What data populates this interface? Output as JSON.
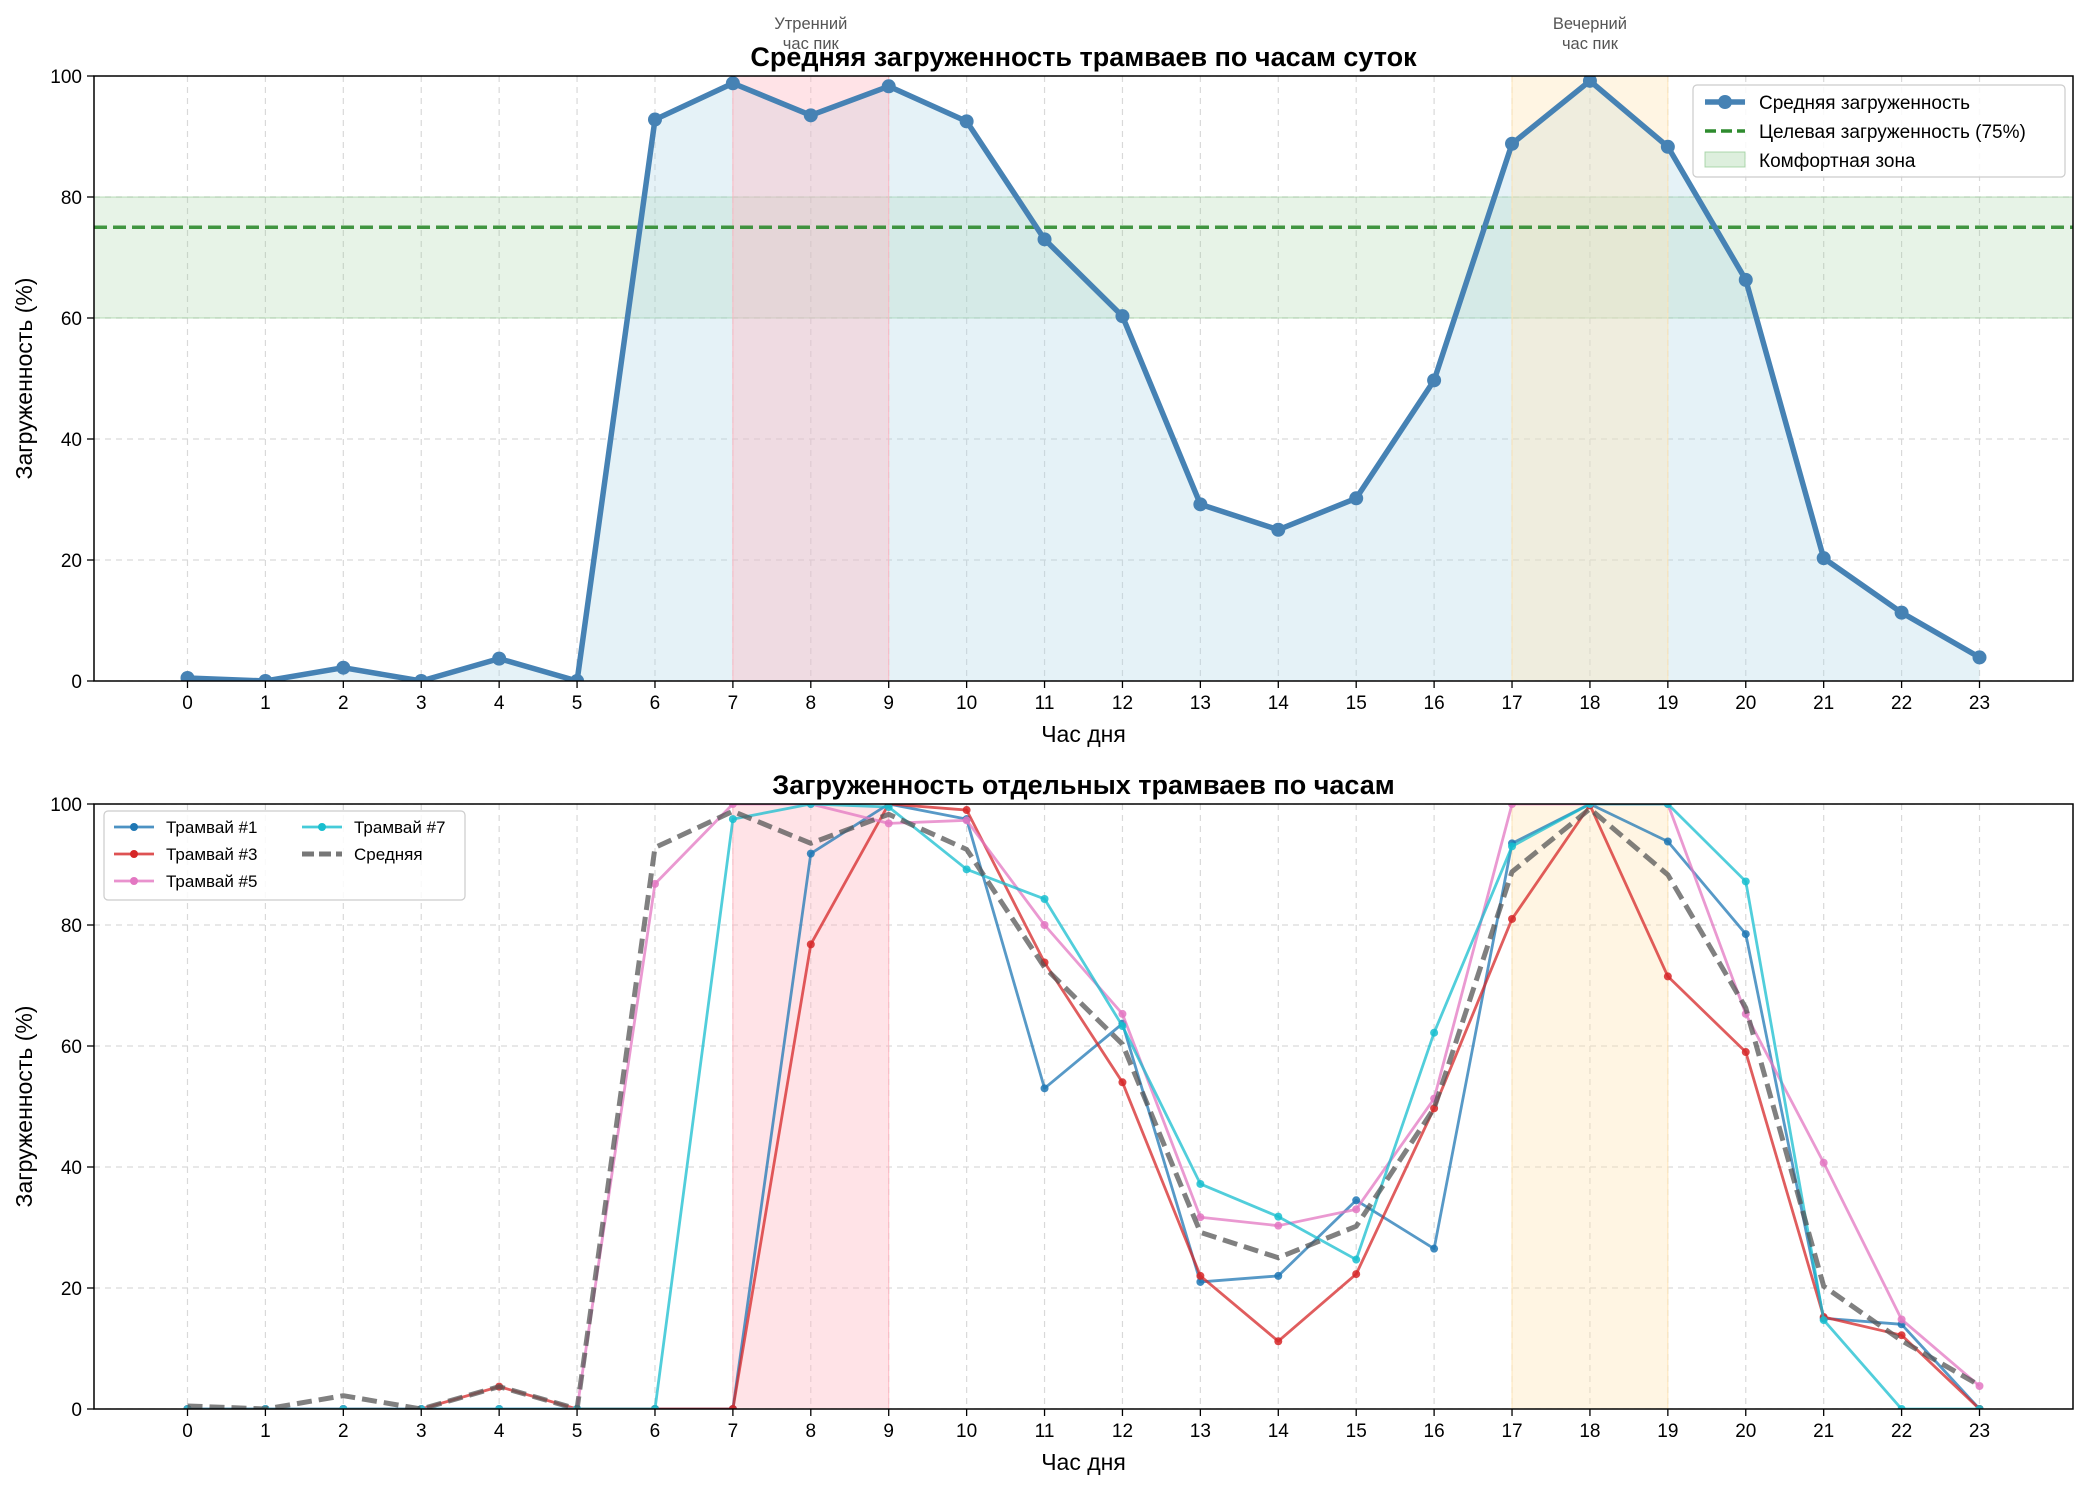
{
  "chart_data": [
    {
      "type": "line",
      "title": "Средняя загруженность трамваев по часам суток",
      "xlabel": "Час дня",
      "ylabel": "Загруженность (%)",
      "x": [
        0,
        1,
        2,
        3,
        4,
        5,
        6,
        7,
        8,
        9,
        10,
        11,
        12,
        13,
        14,
        15,
        16,
        17,
        18,
        19,
        20,
        21,
        22,
        23
      ],
      "xlim": [
        -1.2,
        24.2
      ],
      "ylim": [
        0,
        100
      ],
      "yticks": [
        0,
        20,
        40,
        60,
        80,
        100
      ],
      "grid": true,
      "legend_position": "top-right",
      "series": [
        {
          "name": "Средняя загруженность",
          "values": [
            0.5,
            0,
            2.2,
            0,
            3.7,
            0,
            92.8,
            98.8,
            93.5,
            98.3,
            92.5,
            73,
            60.3,
            29.2,
            25,
            30.2,
            49.7,
            88.8,
            99.2,
            88.3,
            66.3,
            20.3,
            11.3,
            3.9
          ],
          "color": "#4682b4",
          "filled": true,
          "fill_color": "#add8e6"
        }
      ],
      "reference_line": {
        "name": "Целевая загруженность (75%)",
        "value": 75,
        "color": "#2e8b2e"
      },
      "bands": [
        {
          "name": "Комфортная зона",
          "from": 60,
          "to": 80,
          "color": "#90c990"
        }
      ],
      "peak_spans": [
        {
          "label_line1": "Утренний",
          "label_line2": "час пик",
          "from": 7,
          "to": 9,
          "color": "#ffb6c1"
        },
        {
          "label_line1": "Вечерний",
          "label_line2": "час пик",
          "from": 17,
          "to": 19,
          "color": "#ffe4b5"
        }
      ]
    },
    {
      "type": "line",
      "title": "Загруженность отдельных трамваев по часам",
      "xlabel": "Час дня",
      "ylabel": "Загруженность (%)",
      "x": [
        0,
        1,
        2,
        3,
        4,
        5,
        6,
        7,
        8,
        9,
        10,
        11,
        12,
        13,
        14,
        15,
        16,
        17,
        18,
        19,
        20,
        21,
        22,
        23
      ],
      "xlim": [
        -1.2,
        24.2
      ],
      "ylim": [
        0,
        100
      ],
      "yticks": [
        0,
        20,
        40,
        60,
        80,
        100
      ],
      "grid": true,
      "legend_position": "top-left",
      "series": [
        {
          "name": "Трамвай #1",
          "color": "#1f77b4",
          "values": [
            0,
            0,
            0,
            0,
            0,
            0,
            0,
            0,
            91.8,
            100,
            97.5,
            53,
            63.7,
            21,
            22,
            34.5,
            26.5,
            93.5,
            100,
            93.8,
            78.5,
            15,
            14,
            0
          ]
        },
        {
          "name": "Трамвай #3",
          "color": "#d62728",
          "values": [
            0,
            0,
            0,
            0,
            3.7,
            0,
            0,
            0,
            76.8,
            100,
            99,
            73.8,
            54,
            22,
            11.2,
            22.3,
            49.7,
            81,
            99.8,
            71.5,
            59,
            15.2,
            12.2,
            0
          ]
        },
        {
          "name": "Трамвай #5",
          "color": "#e377c2",
          "values": [
            0,
            0,
            0,
            0,
            0,
            0,
            86.8,
            100,
            100,
            96.8,
            97.3,
            80,
            65.3,
            31.7,
            30.3,
            33,
            51.3,
            100,
            100,
            100,
            65.3,
            40.7,
            14.8,
            3.8
          ]
        },
        {
          "name": "Трамвай #7",
          "color": "#17becf",
          "values": [
            0,
            0,
            0,
            0,
            0,
            0,
            0,
            97.5,
            100,
            99.5,
            89.2,
            84.3,
            63.3,
            37.2,
            31.8,
            24.7,
            62.2,
            93,
            100,
            100,
            87.2,
            14.7,
            0,
            0
          ]
        },
        {
          "name": "Средняя",
          "color": "#555555",
          "dashed": true,
          "values": [
            0.5,
            0,
            2.2,
            0,
            3.7,
            0,
            92.8,
            98.8,
            93.5,
            98.3,
            92.5,
            73,
            60.3,
            29.2,
            25,
            30.2,
            49.7,
            88.8,
            99.2,
            88.3,
            66.3,
            20.3,
            11.3,
            3.9
          ]
        }
      ],
      "peak_spans": [
        {
          "from": 7,
          "to": 9,
          "color": "#ffb6c1"
        },
        {
          "from": 17,
          "to": 19,
          "color": "#ffe4b5"
        }
      ]
    }
  ]
}
